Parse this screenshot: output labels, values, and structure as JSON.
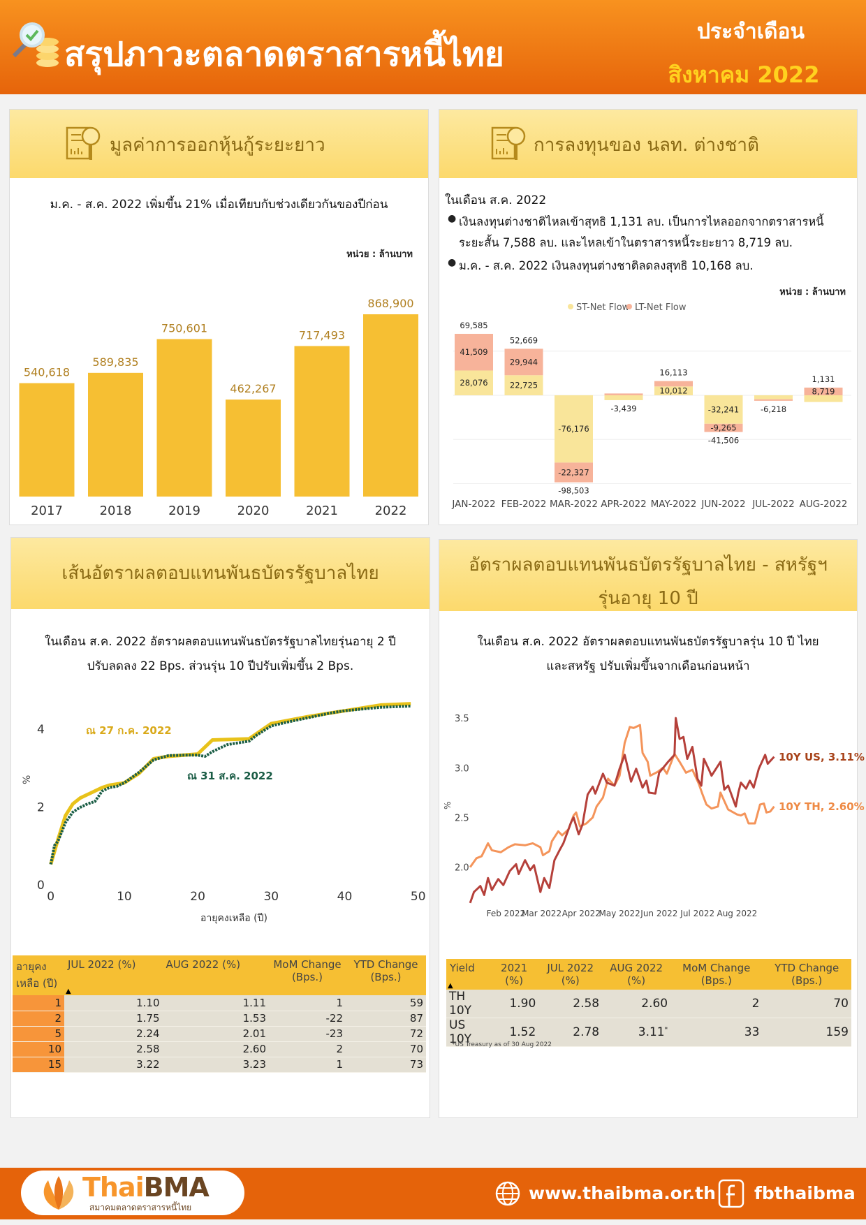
{
  "header": {
    "title": "สรุปภาวะตลาดตราสารหนี้ไทย",
    "month_label": "ประจำเดือน",
    "month_value": "สิงหาคม 2022"
  },
  "panel_issuance": {
    "title": "มูลค่าการออกหุ้นกู้ระยะยาว",
    "subtitle": "ม.ค. - ส.ค. 2022 เพิ่มขึ้น 21% เมื่อเทียบกับช่วงเดียวกันของปีก่อน",
    "unit": "หน่วย : ล้านบาท"
  },
  "panel_foreign": {
    "title": "การลงทุนของ นลท. ต่างชาติ",
    "intro": "ในเดือน ส.ค. 2022",
    "bullet1_line1": "เงินลงทุนต่างชาติไหลเข้าสุทธิ 1,131 ลบ. เป็นการไหลออกจากตราสารหนี้",
    "bullet1_line2": "ระยะสั้น 7,588 ลบ. และไหลเข้าในตราสารหนี้ระยะยาว 8,719 ลบ.",
    "bullet2": "ม.ค. - ส.ค. 2022 เงินลงทุนต่างชาติลดลงสุทธิ 10,168 ลบ.",
    "unit": "หน่วย : ล้านบาท"
  },
  "panel_curve": {
    "title": "เส้นอัตราผลตอบแทนพันธบัตรรัฐบาลไทย",
    "text_line1": "ในเดือน ส.ค. 2022 อัตราผลตอบแทนพันธบัตรรัฐบาลไทยรุ่นอายุ 2 ปี",
    "text_line2": "ปรับลดลง 22 Bps. ส่วนรุ่น 10 ปีปรับเพิ่มขึ้น 2 Bps.",
    "table": {
      "headers": [
        "อายุคง เหลือ (ปี)",
        "JUL 2022 (%)",
        "AUG 2022 (%)",
        "MoM Change (Bps.)",
        "YTD Change (Bps.)"
      ],
      "rows": [
        [
          "1",
          "1.10",
          "1.11",
          "1",
          "59"
        ],
        [
          "2",
          "1.75",
          "1.53",
          "-22",
          "87"
        ],
        [
          "5",
          "2.24",
          "2.01",
          "-23",
          "72"
        ],
        [
          "10",
          "2.58",
          "2.60",
          "2",
          "70"
        ],
        [
          "15",
          "3.22",
          "3.23",
          "1",
          "73"
        ]
      ]
    }
  },
  "panel_th_us": {
    "title_line1": "อัตราผลตอบแทนพันธบัตรรัฐบาลไทย - สหรัฐฯ",
    "title_line2": "รุ่นอายุ 10 ปี",
    "text_line1": "ในเดือน ส.ค. 2022 อัตราผลตอบแทนพันธบัตรรัฐบาลรุ่น 10 ปี ไทย",
    "text_line2": "และสหรัฐ ปรับเพิ่มขึ้นจากเดือนก่อนหน้า",
    "table": {
      "headers": [
        "Yield",
        "2021 (%)",
        "JUL 2022 (%)",
        "AUG 2022 (%)",
        "MoM Change (Bps.)",
        "YTD Change (Bps.)"
      ],
      "rows": [
        [
          "TH 10Y",
          "1.90",
          "2.58",
          "2.60",
          "2",
          "70"
        ],
        [
          "US 10Y",
          "1.52",
          "2.78",
          "3.11",
          "33",
          "159"
        ]
      ],
      "asterisk": "*"
    },
    "footnote": "*US Treasury as of  30 Aug 2022"
  },
  "footer": {
    "logo_text_orange": "Thai",
    "logo_text_brown": "BMA",
    "logo_subtitle": "สมาคมตลาดตราสารหนี้ไทย",
    "website": "www.thaibma.or.th",
    "facebook": "fbthaibma",
    "globe_icon": "globe-icon",
    "facebook_icon": "facebook-icon"
  },
  "chart_data": [
    {
      "type": "bar",
      "categories": [
        "2017",
        "2018",
        "2019",
        "2020",
        "2021",
        "2022"
      ],
      "values": [
        540618,
        589835,
        750601,
        462267,
        717493,
        868900
      ],
      "labels": [
        "540,618",
        "589,835",
        "750,601",
        "462,267",
        "717,493",
        "868,900"
      ],
      "color": "#f6bf33",
      "label_color": "#b07f1f"
    },
    {
      "type": "bar",
      "stacked": true,
      "categories": [
        "JAN-2022",
        "FEB-2022",
        "MAR-2022",
        "APR-2022",
        "MAY-2022",
        "JUN-2022",
        "JUL-2022",
        "AUG-2022"
      ],
      "series": [
        {
          "name": "ST-Net Flow",
          "color": "#f9e59a",
          "values": [
            28076,
            22725,
            -76176,
            -5500,
            10012,
            -32241,
            -4500,
            -7588
          ]
        },
        {
          "name": "LT-Net Flow",
          "color": "#f7b39a",
          "values": [
            41509,
            29944,
            -22327,
            2061,
            6101,
            -9265,
            -1718,
            8719
          ]
        }
      ],
      "totals": [
        69585,
        52669,
        -98503,
        -3439,
        16113,
        -41506,
        -6218,
        1131
      ],
      "labels": [
        {
          "st": "28,076",
          "lt": "41,509",
          "total": "69,585"
        },
        {
          "st": "22,725",
          "lt": "29,944",
          "total": "52,669"
        },
        {
          "st": "-76,176",
          "lt": "-22,327",
          "total": "-98,503"
        },
        {
          "total": "-3,439"
        },
        {
          "st": "10,012",
          "total": "16,113"
        },
        {
          "st": "-32,241",
          "lt": "-9,265",
          "total": "-41,506"
        },
        {
          "total": "-6,218"
        },
        {
          "lt": "8,719",
          "total": "1,131"
        }
      ],
      "legend": "top",
      "grid": true
    },
    {
      "type": "line",
      "xlabel": "อายุคงเหลือ (ปี)",
      "ylabel": "%",
      "xlim": [
        0,
        50
      ],
      "ylim": [
        0,
        4.7
      ],
      "xticks": [
        "0",
        "10",
        "20",
        "30",
        "40",
        "50"
      ],
      "yticks": [
        "0",
        "2",
        "4"
      ],
      "series": [
        {
          "name": "ณ 27 ก.ค. 2022",
          "color": "#e8c21a",
          "points": [
            [
              0,
              0.51
            ],
            [
              1,
              1.16
            ],
            [
              2,
              1.76
            ],
            [
              3,
              2.06
            ],
            [
              4,
              2.21
            ],
            [
              5,
              2.3
            ],
            [
              6,
              2.39
            ],
            [
              7,
              2.48
            ],
            [
              8,
              2.54
            ],
            [
              9,
              2.57
            ],
            [
              10,
              2.6
            ],
            [
              12,
              2.84
            ],
            [
              14,
              3.22
            ],
            [
              16,
              3.28
            ],
            [
              20,
              3.34
            ],
            [
              22,
              3.7
            ],
            [
              27,
              3.73
            ],
            [
              30,
              4.12
            ],
            [
              35,
              4.3
            ],
            [
              40,
              4.45
            ],
            [
              45,
              4.6
            ],
            [
              49,
              4.63
            ]
          ]
        },
        {
          "name": "ณ 31 ส.ค. 2022",
          "color": "#1b5e46",
          "points": [
            [
              0,
              0.51
            ],
            [
              0.5,
              0.99
            ],
            [
              1,
              1.11
            ],
            [
              2,
              1.58
            ],
            [
              3,
              1.85
            ],
            [
              4,
              1.97
            ],
            [
              5,
              2.06
            ],
            [
              6,
              2.12
            ],
            [
              7,
              2.39
            ],
            [
              8,
              2.48
            ],
            [
              9,
              2.51
            ],
            [
              10,
              2.6
            ],
            [
              12,
              2.87
            ],
            [
              14,
              3.19
            ],
            [
              16,
              3.3
            ],
            [
              18,
              3.31
            ],
            [
              20,
              3.31
            ],
            [
              21,
              3.28
            ],
            [
              22,
              3.4
            ],
            [
              24,
              3.58
            ],
            [
              26,
              3.64
            ],
            [
              27,
              3.67
            ],
            [
              28,
              3.82
            ],
            [
              30,
              4.06
            ],
            [
              32,
              4.15
            ],
            [
              35,
              4.27
            ],
            [
              38,
              4.39
            ],
            [
              40,
              4.45
            ],
            [
              45,
              4.54
            ],
            [
              49,
              4.57
            ]
          ]
        }
      ],
      "label_colors": [
        "#d9a919",
        "#1a5c45"
      ]
    },
    {
      "type": "line",
      "ylabel": "%",
      "ylim": [
        1.6,
        3.6
      ],
      "yticks": [
        "2.0",
        "2.5",
        "3.0",
        "3.5"
      ],
      "xticks": [
        "Feb 2022",
        "Mar 2022",
        "Apr 2022",
        "May 2022",
        "Jun 2022",
        "Jul 2022",
        "Aug 2022"
      ],
      "series": [
        {
          "name": "10Y US, 3.11%",
          "color": "#b5403a",
          "points": [
            [
              "2022-01-04",
              1.64
            ],
            [
              "2022-01-07",
              1.75
            ],
            [
              "2022-01-12",
              1.81
            ],
            [
              "2022-01-15",
              1.72
            ],
            [
              "2022-01-18",
              1.89
            ],
            [
              "2022-01-21",
              1.77
            ],
            [
              "2022-01-26",
              1.88
            ],
            [
              "2022-01-30",
              1.82
            ],
            [
              "2022-02-04",
              1.96
            ],
            [
              "2022-02-09",
              2.03
            ],
            [
              "2022-02-11",
              1.93
            ],
            [
              "2022-02-16",
              2.07
            ],
            [
              "2022-02-20",
              1.97
            ],
            [
              "2022-02-23",
              2.02
            ],
            [
              "2022-02-28",
              1.75
            ],
            [
              "2022-03-03",
              1.89
            ],
            [
              "2022-03-07",
              1.79
            ],
            [
              "2022-03-11",
              2.07
            ],
            [
              "2022-03-15",
              2.17
            ],
            [
              "2022-03-18",
              2.24
            ],
            [
              "2022-03-24",
              2.45
            ],
            [
              "2022-03-26",
              2.5
            ],
            [
              "2022-03-30",
              2.33
            ],
            [
              "2022-04-02",
              2.43
            ],
            [
              "2022-04-06",
              2.73
            ],
            [
              "2022-04-10",
              2.81
            ],
            [
              "2022-04-12",
              2.74
            ],
            [
              "2022-04-18",
              2.94
            ],
            [
              "2022-04-21",
              2.85
            ],
            [
              "2022-04-27",
              2.82
            ],
            [
              "2022-05-01",
              2.99
            ],
            [
              "2022-05-05",
              3.13
            ],
            [
              "2022-05-10",
              2.86
            ],
            [
              "2022-05-14",
              2.99
            ],
            [
              "2022-05-19",
              2.8
            ],
            [
              "2022-05-22",
              2.87
            ],
            [
              "2022-05-24",
              2.75
            ],
            [
              "2022-05-29",
              2.74
            ],
            [
              "2022-06-01",
              2.95
            ],
            [
              "2022-06-08",
              3.06
            ],
            [
              "2022-06-13",
              3.13
            ],
            [
              "2022-06-14",
              3.5
            ],
            [
              "2022-06-17",
              3.29
            ],
            [
              "2022-06-20",
              3.31
            ],
            [
              "2022-06-23",
              3.09
            ],
            [
              "2022-06-27",
              3.21
            ],
            [
              "2022-07-01",
              2.89
            ],
            [
              "2022-07-04",
              2.82
            ],
            [
              "2022-07-06",
              3.09
            ],
            [
              "2022-07-10",
              2.98
            ],
            [
              "2022-07-12",
              2.92
            ],
            [
              "2022-07-19",
              3.06
            ],
            [
              "2022-07-22",
              2.78
            ],
            [
              "2022-07-25",
              2.82
            ],
            [
              "2022-07-31",
              2.61
            ],
            [
              "2022-08-02",
              2.75
            ],
            [
              "2022-08-04",
              2.85
            ],
            [
              "2022-08-08",
              2.79
            ],
            [
              "2022-08-11",
              2.87
            ],
            [
              "2022-08-14",
              2.8
            ],
            [
              "2022-08-18",
              2.99
            ],
            [
              "2022-08-23",
              3.13
            ],
            [
              "2022-08-25",
              3.04
            ],
            [
              "2022-08-30",
              3.11
            ]
          ]
        },
        {
          "name": "10Y TH, 2.60%",
          "color": "#f4945a",
          "points": [
            [
              "2022-01-04",
              2.0
            ],
            [
              "2022-01-09",
              2.09
            ],
            [
              "2022-01-13",
              2.11
            ],
            [
              "2022-01-18",
              2.24
            ],
            [
              "2022-01-21",
              2.17
            ],
            [
              "2022-01-28",
              2.15
            ],
            [
              "2022-02-03",
              2.2
            ],
            [
              "2022-02-08",
              2.23
            ],
            [
              "2022-02-16",
              2.22
            ],
            [
              "2022-02-22",
              2.24
            ],
            [
              "2022-02-28",
              2.2
            ],
            [
              "2022-03-02",
              2.12
            ],
            [
              "2022-03-07",
              2.16
            ],
            [
              "2022-03-09",
              2.26
            ],
            [
              "2022-03-14",
              2.36
            ],
            [
              "2022-03-17",
              2.32
            ],
            [
              "2022-03-22",
              2.38
            ],
            [
              "2022-03-26",
              2.52
            ],
            [
              "2022-03-28",
              2.55
            ],
            [
              "2022-03-31",
              2.41
            ],
            [
              "2022-04-05",
              2.44
            ],
            [
              "2022-04-10",
              2.5
            ],
            [
              "2022-04-13",
              2.61
            ],
            [
              "2022-04-18",
              2.7
            ],
            [
              "2022-04-22",
              2.89
            ],
            [
              "2022-04-27",
              2.82
            ],
            [
              "2022-05-01",
              2.92
            ],
            [
              "2022-05-05",
              3.25
            ],
            [
              "2022-05-09",
              3.41
            ],
            [
              "2022-05-12",
              3.4
            ],
            [
              "2022-05-17",
              3.43
            ],
            [
              "2022-05-19",
              3.15
            ],
            [
              "2022-05-23",
              3.06
            ],
            [
              "2022-05-25",
              2.92
            ],
            [
              "2022-05-31",
              2.96
            ],
            [
              "2022-06-04",
              3.0
            ],
            [
              "2022-06-07",
              2.94
            ],
            [
              "2022-06-13",
              3.14
            ],
            [
              "2022-06-17",
              3.06
            ],
            [
              "2022-06-22",
              2.95
            ],
            [
              "2022-06-27",
              2.98
            ],
            [
              "2022-07-02",
              2.84
            ],
            [
              "2022-07-05",
              2.73
            ],
            [
              "2022-07-08",
              2.63
            ],
            [
              "2022-07-12",
              2.59
            ],
            [
              "2022-07-17",
              2.61
            ],
            [
              "2022-07-19",
              2.75
            ],
            [
              "2022-07-25",
              2.58
            ],
            [
              "2022-08-01",
              2.53
            ],
            [
              "2022-08-04",
              2.52
            ],
            [
              "2022-08-07",
              2.54
            ],
            [
              "2022-08-10",
              2.44
            ],
            [
              "2022-08-15",
              2.44
            ],
            [
              "2022-08-19",
              2.63
            ],
            [
              "2022-08-22",
              2.64
            ],
            [
              "2022-08-24",
              2.55
            ],
            [
              "2022-08-27",
              2.56
            ],
            [
              "2022-08-30",
              2.61
            ]
          ]
        }
      ],
      "label_colors": [
        "#a8431a",
        "#ee8a45"
      ]
    }
  ]
}
